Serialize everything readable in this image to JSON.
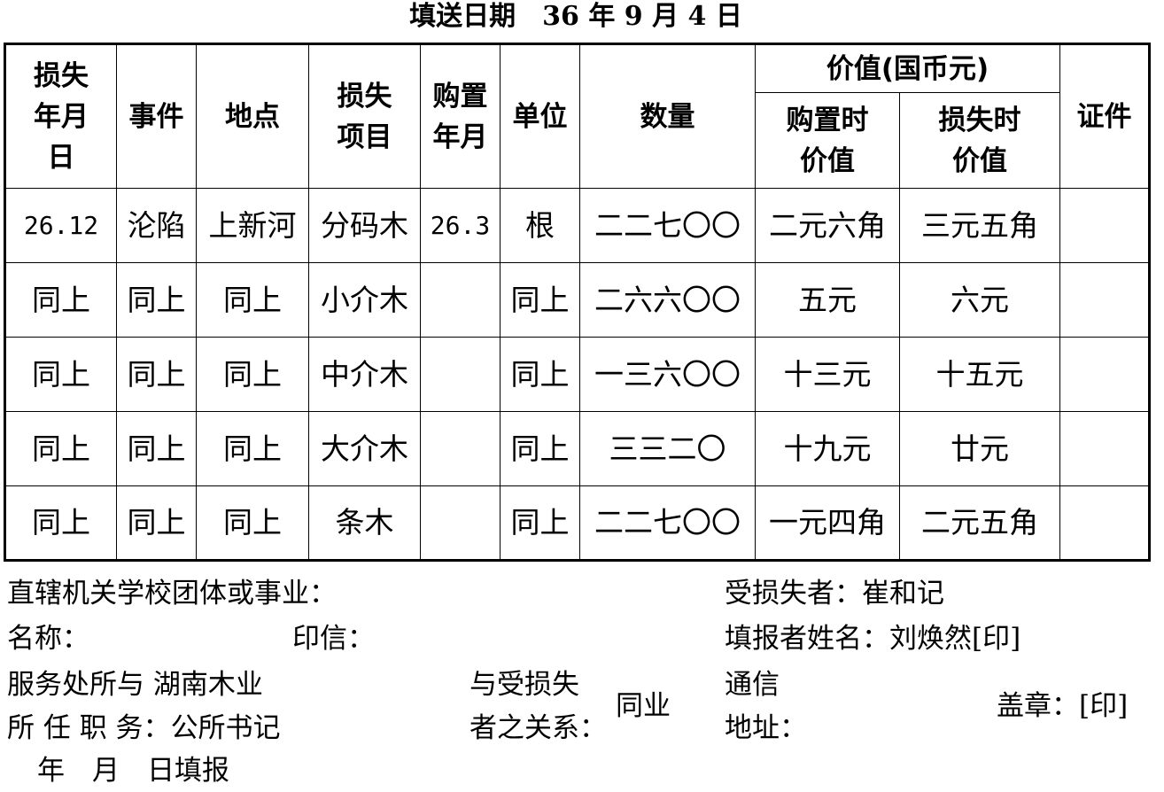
{
  "title": "填送日期　36 年 9 月 4 日",
  "table": {
    "headers": {
      "loss_date": "损失年月日",
      "event": "事件",
      "location": "地点",
      "item": "损失项目",
      "purchase_date": "购置年月",
      "unit": "单位",
      "quantity": "数量",
      "value_group": "价值(国币元)",
      "purchase_value": "购置时价值",
      "loss_value": "损失时价值",
      "certificate": "证件"
    },
    "rows": [
      [
        "26.12",
        "沦陷",
        "上新河",
        "分码木",
        "26.3",
        "根",
        "二二七〇〇",
        "二元六角",
        "三元五角",
        ""
      ],
      [
        "同上",
        "同上",
        "同上",
        "小介木",
        "",
        "同上",
        "二六六〇〇",
        "五元",
        "六元",
        ""
      ],
      [
        "同上",
        "同上",
        "同上",
        "中介木",
        "",
        "同上",
        "一三六〇〇",
        "十三元",
        "十五元",
        ""
      ],
      [
        "同上",
        "同上",
        "同上",
        "大介木",
        "",
        "同上",
        "三三二〇",
        "十九元",
        "廿元",
        ""
      ],
      [
        "同上",
        "同上",
        "同上",
        "条木",
        "",
        "同上",
        "二二七〇〇",
        "一元四角",
        "二元五角",
        ""
      ]
    ]
  },
  "footer": {
    "org_label": "直辖机关学校团体或事业：",
    "name_label": "名称：",
    "seal_label": "印信：",
    "workplace_label": "服务处所与",
    "workplace_value": "湖南木业",
    "position_label": "所 任 职 务：",
    "position_value": "公所书记",
    "relation_label_1": "与受损失",
    "relation_label_2": "者之关系：",
    "relation_value": "同业",
    "victim_label": "受损失者：",
    "victim_value": "崔和记",
    "reporter_label": "填报者姓名：",
    "reporter_value": "刘焕然[印]",
    "address_label_1": "通信",
    "address_label_2": "地址：",
    "stamp": "盖章：[印]",
    "date_line": "年　月　日填报"
  }
}
